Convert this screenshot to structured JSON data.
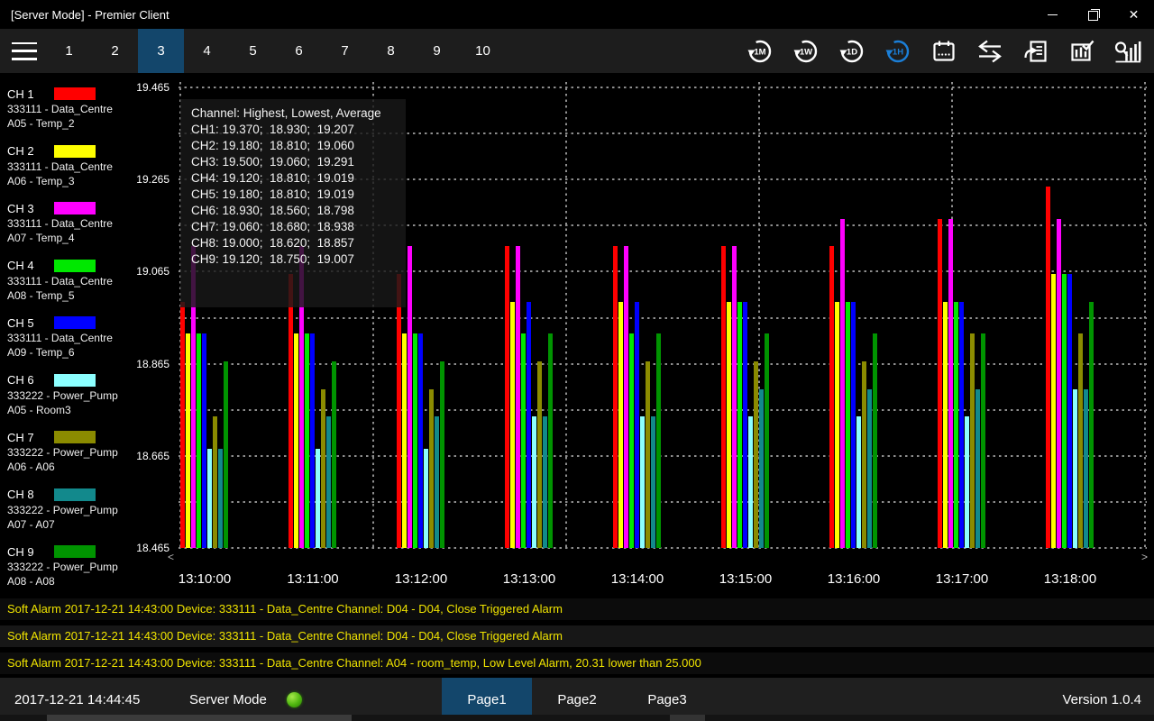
{
  "window": {
    "title": "[Server Mode] - Premier Client",
    "controls": {
      "minimize": "minimize",
      "restore": "restore",
      "close": "close"
    }
  },
  "colors": {
    "accent_selected": "#13466b",
    "icon_active_blue": "#1b7fd8",
    "icon_default": "#ffffff",
    "alarm_text": "#f0e400",
    "indicator_green": "#4fb60f",
    "grid_gray": "#8e8e8e"
  },
  "toolbar": {
    "tabs": [
      "1",
      "2",
      "3",
      "4",
      "5",
      "6",
      "7",
      "8",
      "9",
      "10"
    ],
    "active_tab": "3",
    "icons": [
      {
        "name": "refresh-1m-icon",
        "label": "1M",
        "active": false
      },
      {
        "name": "refresh-1w-icon",
        "label": "1W",
        "active": false
      },
      {
        "name": "refresh-1d-icon",
        "label": "1D",
        "active": false
      },
      {
        "name": "refresh-1h-icon",
        "label": "1H",
        "active": true
      },
      {
        "name": "calendar-icon",
        "label": "",
        "active": false
      },
      {
        "name": "swap-arrows-icon",
        "label": "",
        "active": false
      },
      {
        "name": "export-report-icon",
        "label": "",
        "active": false
      },
      {
        "name": "chart-check-icon",
        "label": "",
        "active": false
      },
      {
        "name": "search-stats-icon",
        "label": "",
        "active": false
      }
    ]
  },
  "sidebar": {
    "channels": [
      {
        "label": "CH 1",
        "color": "#ff0000",
        "device": "333111 - Data_Centre",
        "point": "A05 - Temp_2"
      },
      {
        "label": "CH 2",
        "color": "#ffff00",
        "device": "333111 - Data_Centre",
        "point": "A06 - Temp_3"
      },
      {
        "label": "CH 3",
        "color": "#ff00ff",
        "device": "333111 - Data_Centre",
        "point": "A07 - Temp_4"
      },
      {
        "label": "CH 4",
        "color": "#00e800",
        "device": "333111 - Data_Centre",
        "point": "A08 - Temp_5"
      },
      {
        "label": "CH 5",
        "color": "#0000ff",
        "device": "333111 - Data_Centre",
        "point": "A09 - Temp_6"
      },
      {
        "label": "CH 6",
        "color": "#8cffff",
        "device": "333222 - Power_Pump",
        "point": "A05 - Room3"
      },
      {
        "label": "CH 7",
        "color": "#8b8b00",
        "device": "333222 - Power_Pump",
        "point": "A06 - A06"
      },
      {
        "label": "CH 8",
        "color": "#12898c",
        "device": "333222 - Power_Pump",
        "point": "A07 - A07"
      },
      {
        "label": "CH 9",
        "color": "#009400",
        "device": "333222 - Power_Pump",
        "point": "A08 - A08"
      }
    ]
  },
  "chart_data": {
    "type": "bar",
    "title": "",
    "xlabel": "",
    "ylabel": "",
    "categories": [
      "13:10:00",
      "13:11:00",
      "13:12:00",
      "13:13:00",
      "13:14:00",
      "13:15:00",
      "13:16:00",
      "13:17:00",
      "13:18:00"
    ],
    "ylim": [
      18.465,
      19.465
    ],
    "y_ticks": [
      19.465,
      19.265,
      19.065,
      18.865,
      18.665,
      18.465
    ],
    "grid": "dotted",
    "legend_position": "left-sidebar",
    "series": [
      {
        "name": "CH1",
        "color": "#ff0000",
        "values": [
          19.0,
          19.06,
          19.06,
          19.12,
          19.12,
          19.12,
          19.12,
          19.18,
          19.25
        ]
      },
      {
        "name": "CH2",
        "color": "#ffff00",
        "values": [
          18.93,
          18.93,
          18.93,
          19.0,
          19.0,
          19.0,
          19.0,
          19.0,
          19.06
        ]
      },
      {
        "name": "CH3",
        "color": "#ff00ff",
        "values": [
          19.12,
          19.12,
          19.12,
          19.12,
          19.12,
          19.12,
          19.18,
          19.18,
          19.18
        ]
      },
      {
        "name": "CH4",
        "color": "#00e800",
        "values": [
          18.93,
          18.93,
          18.93,
          18.93,
          18.93,
          19.0,
          19.0,
          19.0,
          19.06
        ]
      },
      {
        "name": "CH5",
        "color": "#0000ff",
        "values": [
          18.93,
          18.93,
          18.93,
          19.0,
          19.0,
          19.0,
          19.0,
          19.0,
          19.06
        ]
      },
      {
        "name": "CH6",
        "color": "#8cffff",
        "values": [
          18.68,
          18.68,
          18.68,
          18.75,
          18.75,
          18.75,
          18.75,
          18.75,
          18.81
        ]
      },
      {
        "name": "CH7",
        "color": "#8b8b00",
        "values": [
          18.75,
          18.81,
          18.81,
          18.87,
          18.87,
          18.87,
          18.87,
          18.93,
          18.93
        ]
      },
      {
        "name": "CH8",
        "color": "#12898c",
        "values": [
          18.68,
          18.75,
          18.75,
          18.75,
          18.75,
          18.81,
          18.81,
          18.81,
          18.81
        ]
      },
      {
        "name": "CH9",
        "color": "#009400",
        "values": [
          18.87,
          18.87,
          18.87,
          18.93,
          18.93,
          18.93,
          18.93,
          18.93,
          19.0
        ]
      }
    ],
    "scroll_left_glyph": "<",
    "scroll_right_glyph": ">"
  },
  "tooltip": {
    "title": "Channel: Highest, Lowest, Average",
    "rows": [
      {
        "ch": "CH1",
        "highest": "19.370",
        "lowest": "18.930",
        "average": "19.207"
      },
      {
        "ch": "CH2",
        "highest": "19.180",
        "lowest": "18.810",
        "average": "19.060"
      },
      {
        "ch": "CH3",
        "highest": "19.500",
        "lowest": "19.060",
        "average": "19.291"
      },
      {
        "ch": "CH4",
        "highest": "19.120",
        "lowest": "18.810",
        "average": "19.019"
      },
      {
        "ch": "CH5",
        "highest": "19.180",
        "lowest": "18.810",
        "average": "19.019"
      },
      {
        "ch": "CH6",
        "highest": "18.930",
        "lowest": "18.560",
        "average": "18.798"
      },
      {
        "ch": "CH7",
        "highest": "19.060",
        "lowest": "18.680",
        "average": "18.938"
      },
      {
        "ch": "CH8",
        "highest": "19.000",
        "lowest": "18.620",
        "average": "18.857"
      },
      {
        "ch": "CH9",
        "highest": "19.120",
        "lowest": "18.750",
        "average": "19.007"
      }
    ]
  },
  "alarms": [
    "Soft Alarm 2017-12-21 14:43:00 Device: 333111 - Data_Centre Channel: D04 - D04, Close Triggered Alarm",
    "Soft Alarm 2017-12-21 14:43:00 Device: 333111 - Data_Centre Channel: D04 - D04, Close Triggered Alarm",
    "Soft Alarm 2017-12-21 14:43:00 Device: 333111 - Data_Centre Channel: A04 - room_temp, Low Level Alarm, 20.31 lower than 25.000"
  ],
  "status": {
    "timestamp": "2017-12-21 14:44:45",
    "mode_label": "Server Mode",
    "pages": [
      "Page1",
      "Page2",
      "Page3"
    ],
    "active_page": "Page1",
    "version": "Version 1.0.4"
  }
}
